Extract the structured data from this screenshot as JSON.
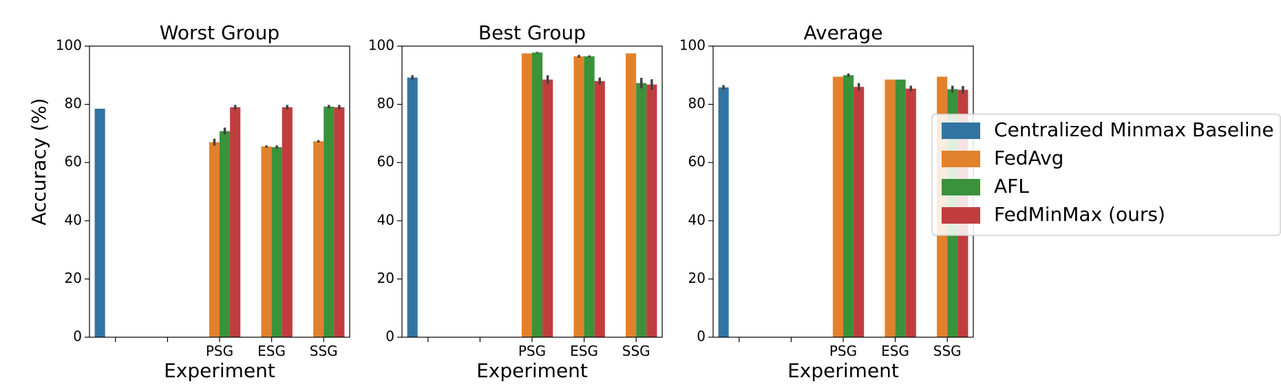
{
  "chart_data": {
    "type": "bar",
    "ylabel": "Accuracy (%)",
    "xlabel": "Experiment",
    "ylim": [
      0,
      100
    ],
    "yticks": [
      0,
      20,
      40,
      60,
      80,
      100
    ],
    "categories": [
      "",
      "",
      "PSG",
      "ESG",
      "SSG"
    ],
    "legend": {
      "placement": "right",
      "entries": [
        "Centralized Minmax Baseline",
        "FedAvg",
        "AFL",
        "FedMinMax (ours)"
      ]
    },
    "series_colors": {
      "Centralized Minmax Baseline": "#3274a1",
      "FedAvg": "#e1812c",
      "AFL": "#3a923a",
      "FedMinMax (ours)": "#c03d3e"
    },
    "errbar_color": "#424242",
    "panels": [
      {
        "title": "Worst Group",
        "series": [
          {
            "name": "Centralized Minmax Baseline",
            "values": [
              78.5,
              null,
              null,
              null,
              null
            ],
            "err": [
              0,
              null,
              null,
              null,
              null
            ]
          },
          {
            "name": "FedAvg",
            "values": [
              null,
              null,
              67,
              65.5,
              67.3
            ],
            "err": [
              null,
              null,
              1.2,
              0.4,
              0.4
            ]
          },
          {
            "name": "AFL",
            "values": [
              null,
              null,
              70.8,
              65.3,
              79.2
            ],
            "err": [
              null,
              null,
              1.2,
              0.6,
              0.6
            ]
          },
          {
            "name": "FedMinMax (ours)",
            "values": [
              null,
              null,
              79,
              79,
              79
            ],
            "err": [
              null,
              null,
              0.8,
              0.8,
              0.8
            ]
          }
        ]
      },
      {
        "title": "Best Group",
        "series": [
          {
            "name": "Centralized Minmax Baseline",
            "values": [
              89.2,
              null,
              null,
              null,
              null
            ],
            "err": [
              0.8,
              null,
              null,
              null,
              null
            ]
          },
          {
            "name": "FedAvg",
            "values": [
              null,
              null,
              97.5,
              96.5,
              97.5
            ],
            "err": [
              null,
              null,
              0,
              0.5,
              0
            ]
          },
          {
            "name": "AFL",
            "values": [
              null,
              null,
              97.8,
              96.5,
              87.3
            ],
            "err": [
              null,
              null,
              0.2,
              0.3,
              1.8
            ]
          },
          {
            "name": "FedMinMax (ours)",
            "values": [
              null,
              null,
              88.5,
              88,
              86.8
            ],
            "err": [
              null,
              null,
              1.5,
              1.2,
              1.8
            ]
          }
        ]
      },
      {
        "title": "Average",
        "series": [
          {
            "name": "Centralized Minmax Baseline",
            "values": [
              85.8,
              null,
              null,
              null,
              null
            ],
            "err": [
              0.8,
              null,
              null,
              null,
              null
            ]
          },
          {
            "name": "FedAvg",
            "values": [
              null,
              null,
              89.5,
              88.5,
              89.5
            ],
            "err": [
              null,
              null,
              0,
              0,
              0
            ]
          },
          {
            "name": "AFL",
            "values": [
              null,
              null,
              90,
              88.5,
              85.2
            ],
            "err": [
              null,
              null,
              0.6,
              0,
              1.2
            ]
          },
          {
            "name": "FedMinMax (ours)",
            "values": [
              null,
              null,
              86,
              85.4,
              85
            ],
            "err": [
              null,
              null,
              1.3,
              1,
              1.3
            ]
          }
        ]
      }
    ]
  }
}
